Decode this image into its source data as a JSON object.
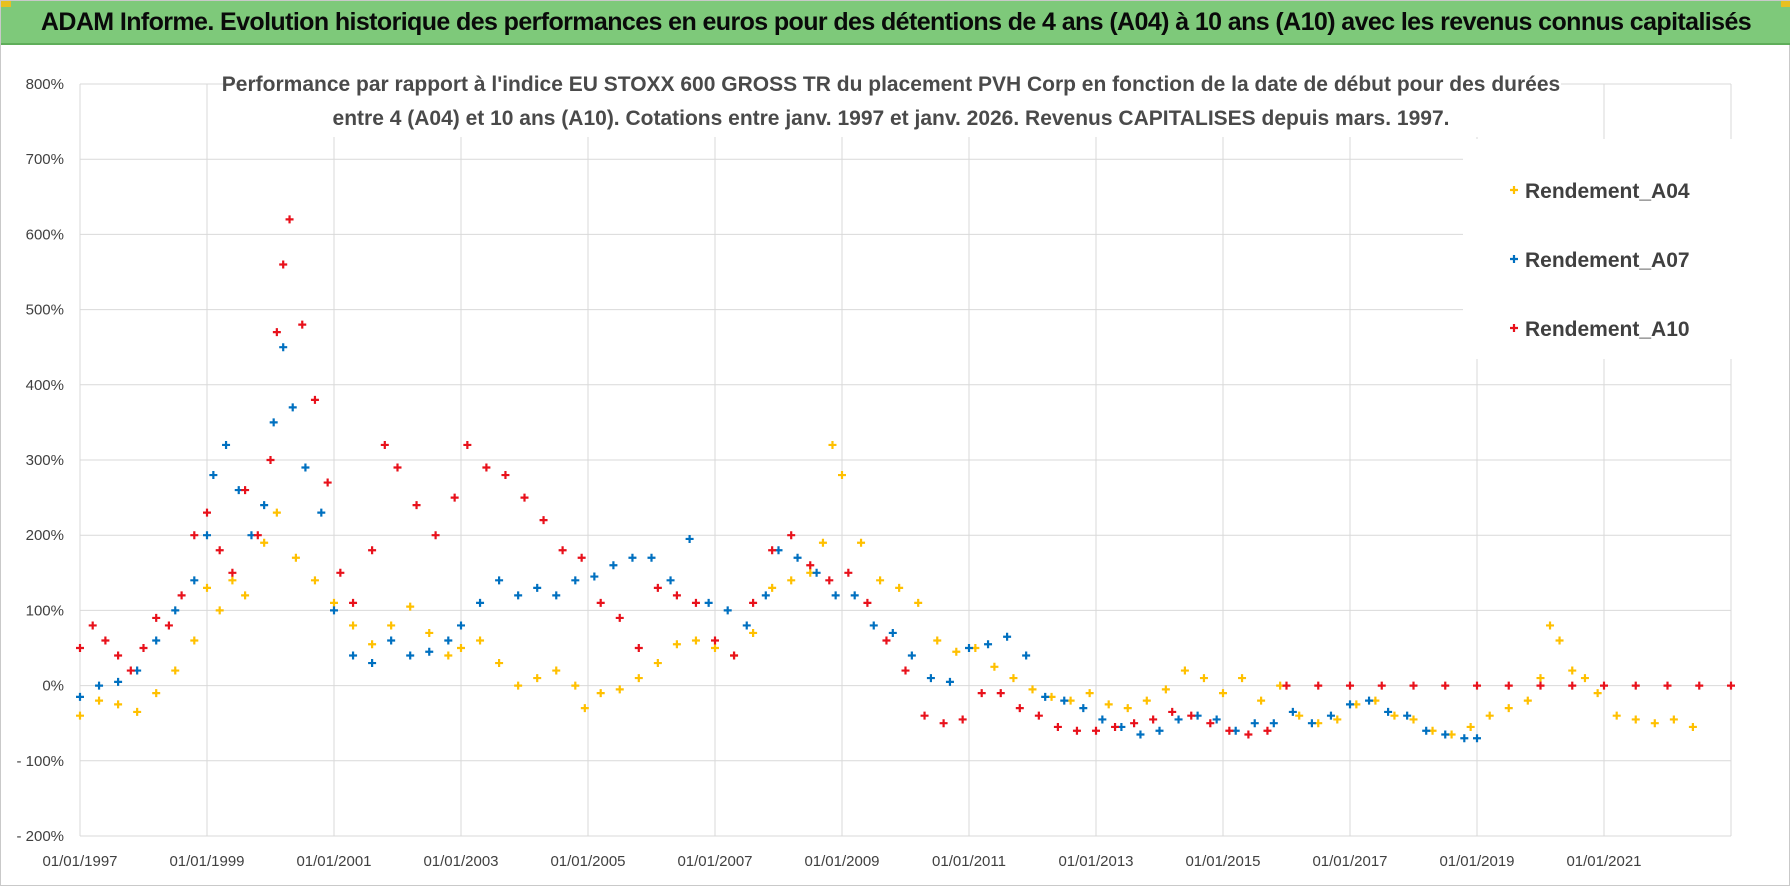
{
  "header": {
    "title": "ADAM Informe. Evolution historique des performances en euros pour des détentions de 4 ans (A04) à 10 ans (A10) avec les revenus connus capitalisés"
  },
  "colors": {
    "header_bg": "#7ec97a",
    "A04": "#ffc000",
    "A07": "#0070c0",
    "A10": "#e8111b",
    "grid": "#d9d9d9"
  },
  "chart_data": {
    "type": "scatter",
    "title_line1": "Performance par rapport à l'indice EU STOXX 600 GROSS TR  du placement PVH Corp en fonction de la date de début pour des durées",
    "title_line2": "entre 4 (A04) et 10 ans (A10). Cotations entre janv. 1997 et janv. 2026. Revenus CAPITALISES depuis mars. 1997.",
    "xlabel": "",
    "ylabel": "",
    "xlim": [
      1997.0,
      2023.0
    ],
    "ylim": [
      -200,
      800
    ],
    "y_ticks": [
      -200,
      -100,
      0,
      100,
      200,
      300,
      400,
      500,
      600,
      700,
      800
    ],
    "y_tick_labels": [
      "- 200%",
      "- 100%",
      "0%",
      "100%",
      "200%",
      "300%",
      "400%",
      "500%",
      "600%",
      "700%",
      "800%"
    ],
    "x_ticks": [
      1997,
      1999,
      2001,
      2003,
      2005,
      2007,
      2009,
      2011,
      2013,
      2015,
      2017,
      2019,
      2021
    ],
    "x_tick_labels": [
      "01/01/1997",
      "01/01/1999",
      "01/01/2001",
      "01/01/2003",
      "01/01/2005",
      "01/01/2007",
      "01/01/2009",
      "01/01/2011",
      "01/01/2013",
      "01/01/2015",
      "01/01/2017",
      "01/01/2019",
      "01/01/2021"
    ],
    "grid": true,
    "legend_position": "top-right",
    "series": [
      {
        "name": "Rendement_A04",
        "color": "#ffc000",
        "x": [
          1997.0,
          1997.3,
          1997.6,
          1997.9,
          1998.2,
          1998.5,
          1998.8,
          1999.0,
          1999.2,
          1999.4,
          1999.6,
          1999.9,
          2000.1,
          2000.4,
          2000.7,
          2001.0,
          2001.3,
          2001.6,
          2001.9,
          2002.2,
          2002.5,
          2002.8,
          2003.0,
          2003.3,
          2003.6,
          2003.9,
          2004.2,
          2004.5,
          2004.8,
          2004.95,
          2005.2,
          2005.5,
          2005.8,
          2006.1,
          2006.4,
          2006.7,
          2007.0,
          2007.3,
          2007.6,
          2007.9,
          2008.2,
          2008.5,
          2008.7,
          2008.85,
          2009.0,
          2009.3,
          2009.6,
          2009.9,
          2010.2,
          2010.5,
          2010.8,
          2011.1,
          2011.4,
          2011.7,
          2012.0,
          2012.3,
          2012.6,
          2012.9,
          2013.2,
          2013.5,
          2013.8,
          2014.1,
          2014.4,
          2014.7,
          2015.0,
          2015.3,
          2015.6,
          2015.9,
          2016.2,
          2016.5,
          2016.8,
          2017.1,
          2017.4,
          2017.7,
          2018.0,
          2018.3,
          2018.6,
          2018.9,
          2019.2,
          2019.5,
          2019.8,
          2020.0,
          2020.15,
          2020.3,
          2020.5,
          2020.7,
          2020.9,
          2021.2,
          2021.5,
          2021.8,
          2022.1,
          2022.4
        ],
        "values": [
          -40,
          -20,
          -25,
          -35,
          -10,
          20,
          60,
          130,
          100,
          140,
          120,
          190,
          230,
          170,
          140,
          110,
          80,
          55,
          80,
          105,
          70,
          40,
          50,
          60,
          30,
          0,
          10,
          20,
          0,
          -30,
          -10,
          -5,
          10,
          30,
          55,
          60,
          50,
          40,
          70,
          130,
          140,
          150,
          190,
          320,
          280,
          190,
          140,
          130,
          110,
          60,
          45,
          50,
          25,
          10,
          -5,
          -15,
          -20,
          -10,
          -25,
          -30,
          -20,
          -5,
          20,
          10,
          -10,
          10,
          -20,
          0,
          -40,
          -50,
          -45,
          -25,
          -20,
          -40,
          -45,
          -60,
          -65,
          -55,
          -40,
          -30,
          -20,
          10,
          80,
          60,
          20,
          10,
          -10,
          -40,
          -45,
          -50,
          -45,
          -55
        ]
      },
      {
        "name": "Rendement_A07",
        "color": "#0070c0",
        "x": [
          1997.0,
          1997.3,
          1997.6,
          1997.9,
          1998.2,
          1998.5,
          1998.8,
          1999.0,
          1999.1,
          1999.3,
          1999.5,
          1999.7,
          1999.9,
          2000.05,
          2000.2,
          2000.35,
          2000.55,
          2000.8,
          2001.0,
          2001.3,
          2001.6,
          2001.9,
          2002.2,
          2002.5,
          2002.8,
          2003.0,
          2003.3,
          2003.6,
          2003.9,
          2004.2,
          2004.5,
          2004.8,
          2005.1,
          2005.4,
          2005.7,
          2006.0,
          2006.3,
          2006.6,
          2006.9,
          2007.2,
          2007.5,
          2007.8,
          2008.0,
          2008.3,
          2008.6,
          2008.9,
          2009.2,
          2009.5,
          2009.8,
          2010.1,
          2010.4,
          2010.7,
          2011.0,
          2011.3,
          2011.6,
          2011.9,
          2012.2,
          2012.5,
          2012.8,
          2013.1,
          2013.4,
          2013.7,
          2014.0,
          2014.3,
          2014.6,
          2014.9,
          2015.2,
          2015.5,
          2015.8,
          2016.1,
          2016.4,
          2016.7,
          2017.0,
          2017.3,
          2017.6,
          2017.9,
          2018.2,
          2018.5,
          2018.8,
          2019.0
        ],
        "values": [
          -15,
          0,
          5,
          20,
          60,
          100,
          140,
          200,
          280,
          320,
          260,
          200,
          240,
          350,
          450,
          370,
          290,
          230,
          100,
          40,
          30,
          60,
          40,
          45,
          60,
          80,
          110,
          140,
          120,
          130,
          120,
          140,
          145,
          160,
          170,
          170,
          140,
          195,
          110,
          100,
          80,
          120,
          180,
          170,
          150,
          120,
          120,
          80,
          70,
          40,
          10,
          5,
          50,
          55,
          65,
          40,
          -15,
          -20,
          -30,
          -45,
          -55,
          -65,
          -60,
          -45,
          -40,
          -45,
          -60,
          -50,
          -50,
          -35,
          -50,
          -40,
          -25,
          -20,
          -35,
          -40,
          -60,
          -65,
          -70,
          -70
        ]
      },
      {
        "name": "Rendement_A10",
        "color": "#e8111b",
        "x": [
          1997.0,
          1997.2,
          1997.4,
          1997.6,
          1997.8,
          1998.0,
          1998.2,
          1998.4,
          1998.6,
          1998.8,
          1999.0,
          1999.2,
          1999.4,
          1999.6,
          1999.8,
          2000.0,
          2000.1,
          2000.2,
          2000.3,
          2000.5,
          2000.7,
          2000.9,
          2001.1,
          2001.3,
          2001.6,
          2001.8,
          2002.0,
          2002.3,
          2002.6,
          2002.9,
          2003.1,
          2003.4,
          2003.7,
          2004.0,
          2004.3,
          2004.6,
          2004.9,
          2005.2,
          2005.5,
          2005.8,
          2006.1,
          2006.4,
          2006.7,
          2007.0,
          2007.3,
          2007.6,
          2007.9,
          2008.2,
          2008.5,
          2008.8,
          2009.1,
          2009.4,
          2009.7,
          2010.0,
          2010.3,
          2010.6,
          2010.9,
          2011.2,
          2011.5,
          2011.8,
          2012.1,
          2012.4,
          2012.7,
          2013.0,
          2013.3,
          2013.6,
          2013.9,
          2014.2,
          2014.5,
          2014.8,
          2015.1,
          2015.4,
          2015.7,
          2016.0,
          2016.5,
          2017.0,
          2017.5,
          2018.0,
          2018.5,
          2019.0,
          2019.5,
          2020.0,
          2020.5,
          2021.0,
          2021.5,
          2022.0,
          2022.5,
          2023.0
        ],
        "values": [
          50,
          80,
          60,
          40,
          20,
          50,
          90,
          80,
          120,
          200,
          230,
          180,
          150,
          260,
          200,
          300,
          470,
          560,
          620,
          480,
          380,
          270,
          150,
          110,
          180,
          320,
          290,
          240,
          200,
          250,
          320,
          290,
          280,
          250,
          220,
          180,
          170,
          110,
          90,
          50,
          130,
          120,
          110,
          60,
          40,
          110,
          180,
          200,
          160,
          140,
          150,
          110,
          60,
          20,
          -40,
          -50,
          -45,
          -10,
          -10,
          -30,
          -40,
          -55,
          -60,
          -60,
          -55,
          -50,
          -45,
          -35,
          -40,
          -50,
          -60,
          -65,
          -60,
          0,
          0,
          0,
          0,
          0,
          0,
          0,
          0,
          0,
          0,
          0,
          0,
          0,
          0,
          0
        ]
      }
    ]
  }
}
